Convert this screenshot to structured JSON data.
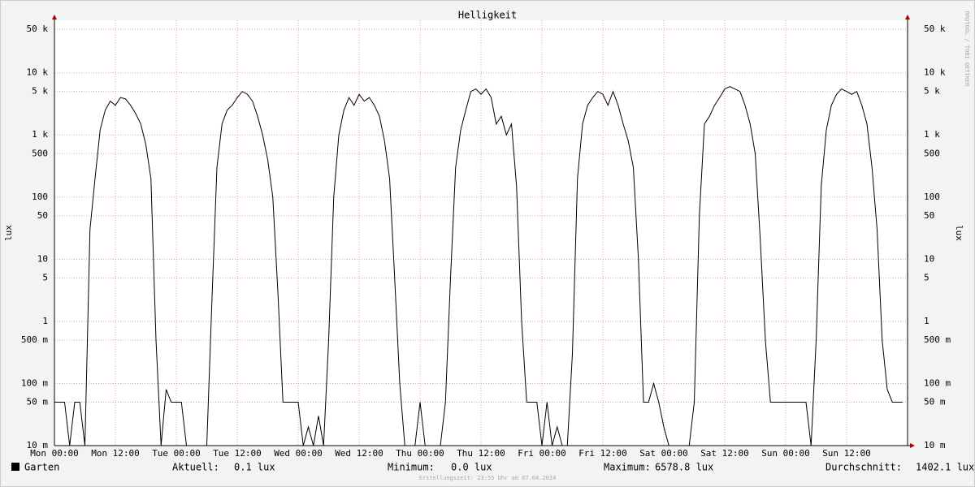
{
  "chart_data": {
    "type": "line",
    "title": "Helligkeit",
    "y_label": "lux",
    "y2_label": "lux",
    "watermark": "RRDTOOL / TOBI OETIKER",
    "footer": "Erstellungszeit: 23:55 Uhr am 07.04.2024",
    "log_scale": true,
    "grid": true,
    "xlim": [
      0,
      168
    ],
    "xticks": [
      {
        "value": 0,
        "label": "Mon 00:00"
      },
      {
        "value": 12,
        "label": "Mon 12:00"
      },
      {
        "value": 24,
        "label": "Tue 00:00"
      },
      {
        "value": 36,
        "label": "Tue 12:00"
      },
      {
        "value": 48,
        "label": "Wed 00:00"
      },
      {
        "value": 60,
        "label": "Wed 12:00"
      },
      {
        "value": 72,
        "label": "Thu 00:00"
      },
      {
        "value": 84,
        "label": "Thu 12:00"
      },
      {
        "value": 96,
        "label": "Fri 00:00"
      },
      {
        "value": 108,
        "label": "Fri 12:00"
      },
      {
        "value": 120,
        "label": "Sat 00:00"
      },
      {
        "value": 132,
        "label": "Sat 12:00"
      },
      {
        "value": 144,
        "label": "Sun 00:00"
      },
      {
        "value": 156,
        "label": "Sun 12:00"
      }
    ],
    "ylim": [
      0.01,
      70000
    ],
    "yticks": [
      {
        "value": 0.01,
        "label": "10 m"
      },
      {
        "value": 0.05,
        "label": "50 m"
      },
      {
        "value": 0.1,
        "label": "100 m"
      },
      {
        "value": 0.5,
        "label": "500 m"
      },
      1,
      5,
      10,
      50,
      100,
      500,
      {
        "value": 1000,
        "label": "1 k"
      },
      {
        "value": 5000,
        "label": "5 k"
      },
      {
        "value": 10000,
        "label": "10 k"
      },
      {
        "value": 50000,
        "label": "50 k"
      }
    ],
    "x": [
      0,
      1,
      2,
      3,
      4,
      5,
      6,
      7,
      8,
      9,
      10,
      11,
      12,
      13,
      14,
      15,
      16,
      17,
      18,
      19,
      20,
      21,
      22,
      23,
      24,
      25,
      26,
      27,
      28,
      29,
      30,
      31,
      32,
      33,
      34,
      35,
      36,
      37,
      38,
      39,
      40,
      41,
      42,
      43,
      44,
      45,
      46,
      47,
      48,
      49,
      50,
      51,
      52,
      53,
      54,
      55,
      56,
      57,
      58,
      59,
      60,
      61,
      62,
      63,
      64,
      65,
      66,
      67,
      68,
      69,
      70,
      71,
      72,
      73,
      74,
      75,
      76,
      77,
      78,
      79,
      80,
      81,
      82,
      83,
      84,
      85,
      86,
      87,
      88,
      89,
      90,
      91,
      92,
      93,
      94,
      95,
      96,
      97,
      98,
      99,
      100,
      101,
      102,
      103,
      104,
      105,
      106,
      107,
      108,
      109,
      110,
      111,
      112,
      113,
      114,
      115,
      116,
      117,
      118,
      119,
      120,
      121,
      122,
      123,
      124,
      125,
      126,
      127,
      128,
      129,
      130,
      131,
      132,
      133,
      134,
      135,
      136,
      137,
      138,
      139,
      140,
      141,
      142,
      143,
      144,
      145,
      146,
      147,
      148,
      149,
      150,
      151,
      152,
      153,
      154,
      155,
      156,
      157,
      158,
      159,
      160,
      161,
      162,
      163,
      164,
      165,
      166,
      167
    ],
    "series": [
      {
        "name": "Garten",
        "color": "#000000",
        "values": [
          0.05,
          0.05,
          0.05,
          0,
          0.05,
          0.05,
          0.01,
          30,
          200,
          1200,
          2500,
          3500,
          3000,
          4000,
          3800,
          3000,
          2200,
          1500,
          700,
          200,
          0.5,
          0,
          0.08,
          0.05,
          0.05,
          0.05,
          0,
          0,
          0,
          0,
          0.01,
          2,
          300,
          1500,
          2500,
          3000,
          4000,
          5000,
          4500,
          3500,
          2000,
          1000,
          400,
          100,
          3,
          0.05,
          0.05,
          0.05,
          0.05,
          0,
          0.02,
          0,
          0.03,
          0,
          0.5,
          100,
          1000,
          2500,
          4000,
          3000,
          4500,
          3500,
          4000,
          3000,
          2000,
          800,
          200,
          5,
          0.1,
          0,
          0,
          0,
          0.05,
          0,
          0,
          0,
          0,
          0.05,
          5,
          300,
          1200,
          2500,
          5000,
          5500,
          4500,
          5500,
          4000,
          1500,
          2000,
          1000,
          1500,
          150,
          1,
          0.05,
          0.05,
          0.05,
          0,
          0.05,
          0,
          0.02,
          0,
          0,
          0.3,
          200,
          1500,
          3000,
          4000,
          5000,
          4500,
          3000,
          5000,
          3000,
          1500,
          800,
          300,
          10,
          0.05,
          0.05,
          0.1,
          0.05,
          0.02,
          0,
          0,
          0,
          0,
          0,
          0.05,
          50,
          1500,
          2000,
          3000,
          4000,
          5500,
          6000,
          5500,
          5000,
          3000,
          1500,
          500,
          20,
          0.5,
          0.05,
          0.05,
          0.05,
          0.05,
          0.05,
          0.05,
          0.05,
          0.05,
          0,
          0.5,
          150,
          1200,
          3000,
          4500,
          5500,
          5000,
          4500,
          5000,
          3000,
          1500,
          300,
          30,
          0.5,
          0.08,
          0.05,
          0.05,
          0.05
        ]
      }
    ],
    "stats": [
      {
        "label": "Aktuell:",
        "value": "0.1 lux"
      },
      {
        "label": "Minimum:",
        "value": "0.0 lux"
      },
      {
        "label": "Maximum:",
        "value": "6578.8 lux"
      },
      {
        "label": "Durchschnitt:",
        "value": "1402.1 lux"
      }
    ]
  }
}
